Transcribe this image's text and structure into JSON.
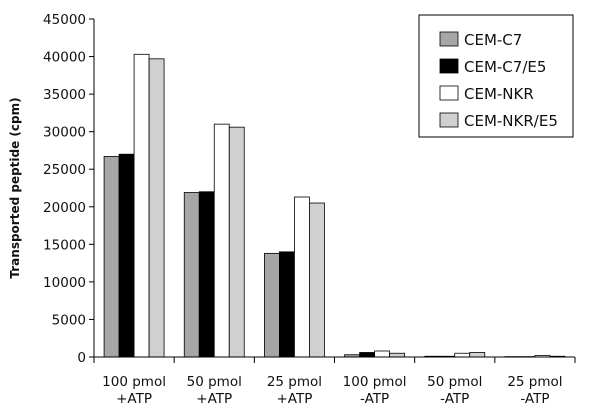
{
  "chart_data": {
    "type": "bar",
    "title": "",
    "xlabel": "",
    "ylabel": "Transported peptide (cpm)",
    "ylim": [
      0,
      45000
    ],
    "yticks": [
      0,
      5000,
      10000,
      15000,
      20000,
      25000,
      30000,
      35000,
      40000,
      45000
    ],
    "categories": [
      [
        "100 pmol",
        "+ATP"
      ],
      [
        "50 pmol",
        "+ATP"
      ],
      [
        "25 pmol",
        "+ATP"
      ],
      [
        "100 pmol",
        "-ATP"
      ],
      [
        "50 pmol",
        "-ATP"
      ],
      [
        "25 pmol",
        "-ATP"
      ]
    ],
    "series": [
      {
        "name": "CEM-C7",
        "color": "#a6a6a6",
        "values": [
          26700,
          21900,
          13800,
          300,
          100,
          50
        ]
      },
      {
        "name": "CEM-C7/E5",
        "color": "#000000",
        "values": [
          27000,
          22000,
          14000,
          600,
          100,
          50
        ]
      },
      {
        "name": "CEM-NKR",
        "color": "#ffffff",
        "values": [
          40300,
          31000,
          21300,
          800,
          500,
          200
        ]
      },
      {
        "name": "CEM-NKR/E5",
        "color": "#d0d0d0",
        "values": [
          39700,
          30600,
          20500,
          500,
          600,
          100
        ]
      }
    ],
    "grid": false,
    "legend_position": "top-right"
  }
}
